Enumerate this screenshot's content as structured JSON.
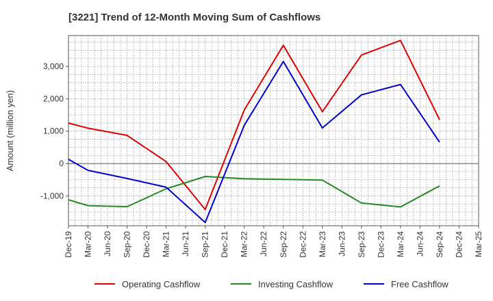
{
  "chart_data": {
    "type": "line",
    "title": "[3221]  Trend of 12-Month Moving Sum of Cashflows",
    "xlabel": "",
    "ylabel": "Amount (million yen)",
    "categories": [
      "Dec-19",
      "Mar-20",
      "Jun-20",
      "Sep-20",
      "Dec-20",
      "Mar-21",
      "Jun-21",
      "Sep-21",
      "Dec-21",
      "Mar-22",
      "Jun-22",
      "Sep-22",
      "Dec-22",
      "Mar-23",
      "Jun-23",
      "Sep-23",
      "Dec-23",
      "Mar-24",
      "Jun-24",
      "Sep-24",
      "Dec-24",
      "Mar-25"
    ],
    "ylim": [
      -1920,
      3950
    ],
    "yticks": [
      -1000,
      0,
      1000,
      2000,
      3000
    ],
    "ytick_labels": [
      "-1,000",
      "0",
      "1,000",
      "2,000",
      "3,000"
    ],
    "grid": true,
    "legend": "bottom",
    "series": [
      {
        "name": "Operating Cashflow",
        "color": "#dd0000",
        "points": [
          [
            0,
            1250
          ],
          [
            1,
            1090
          ],
          [
            3,
            870
          ],
          [
            5,
            60
          ],
          [
            7,
            -1420
          ],
          [
            9,
            1650
          ],
          [
            11,
            3650
          ],
          [
            13,
            1600
          ],
          [
            15,
            3350
          ],
          [
            17,
            3800
          ],
          [
            19,
            1350
          ]
        ]
      },
      {
        "name": "Investing Cashflow",
        "color": "#228822",
        "points": [
          [
            0,
            -1120
          ],
          [
            1,
            -1300
          ],
          [
            3,
            -1330
          ],
          [
            5,
            -780
          ],
          [
            7,
            -400
          ],
          [
            9,
            -470
          ],
          [
            11,
            -490
          ],
          [
            13,
            -510
          ],
          [
            15,
            -1220
          ],
          [
            17,
            -1340
          ],
          [
            19,
            -690
          ]
        ]
      },
      {
        "name": "Free Cashflow",
        "color": "#0000cc",
        "points": [
          [
            0,
            130
          ],
          [
            1,
            -210
          ],
          [
            3,
            -460
          ],
          [
            5,
            -730
          ],
          [
            7,
            -1820
          ],
          [
            9,
            1180
          ],
          [
            11,
            3150
          ],
          [
            13,
            1100
          ],
          [
            15,
            2120
          ],
          [
            17,
            2440
          ],
          [
            19,
            660
          ]
        ]
      }
    ]
  }
}
